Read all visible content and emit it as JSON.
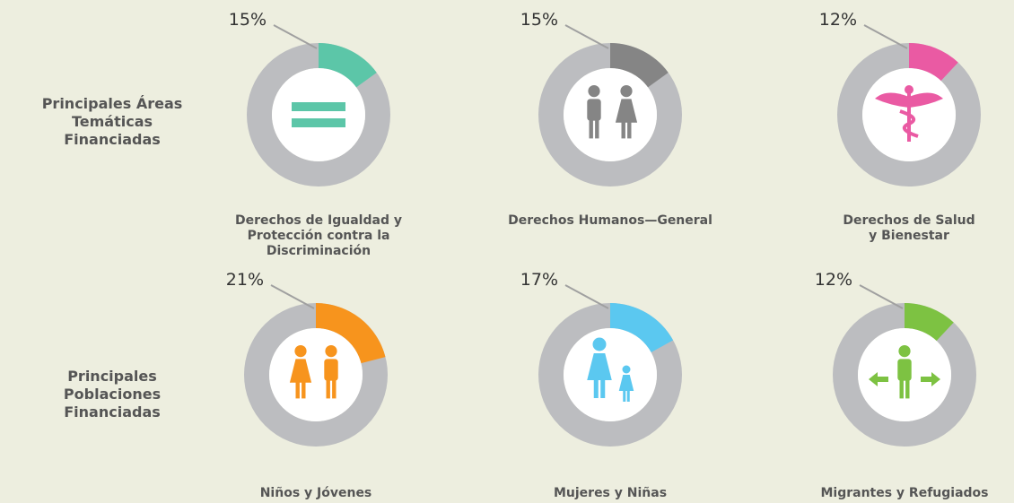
{
  "row_labels": [
    "Principales Áreas Temáticas Financiadas",
    "Principales Poblaciones Financiadas"
  ],
  "chart_data": [
    {
      "type": "donut",
      "title": "Derechos de Igualdad y Protección contra la Discriminación",
      "values": [
        15
      ],
      "value_labels": [
        "15%"
      ],
      "color": "#5cc6a8"
    },
    {
      "type": "donut",
      "title": "Derechos Humanos—General",
      "values": [
        15
      ],
      "value_labels": [
        "15%"
      ],
      "color": "#858585"
    },
    {
      "type": "donut",
      "title": "Derechos de Salud y Bienestar",
      "values": [
        12
      ],
      "value_labels": [
        "12%"
      ],
      "color": "#ea5aa3"
    },
    {
      "type": "donut",
      "title": "Niños y Jóvenes",
      "values": [
        21
      ],
      "value_labels": [
        "21%"
      ],
      "color": "#f7941d"
    },
    {
      "type": "donut",
      "title": "Mujeres y Niñas",
      "values": [
        17
      ],
      "value_labels": [
        "17%"
      ],
      "color": "#5bc8f0"
    },
    {
      "type": "donut",
      "title": "Migrantes y Refugiados",
      "values": [
        12
      ],
      "value_labels": [
        "12%"
      ],
      "color": "#7dc242"
    }
  ]
}
